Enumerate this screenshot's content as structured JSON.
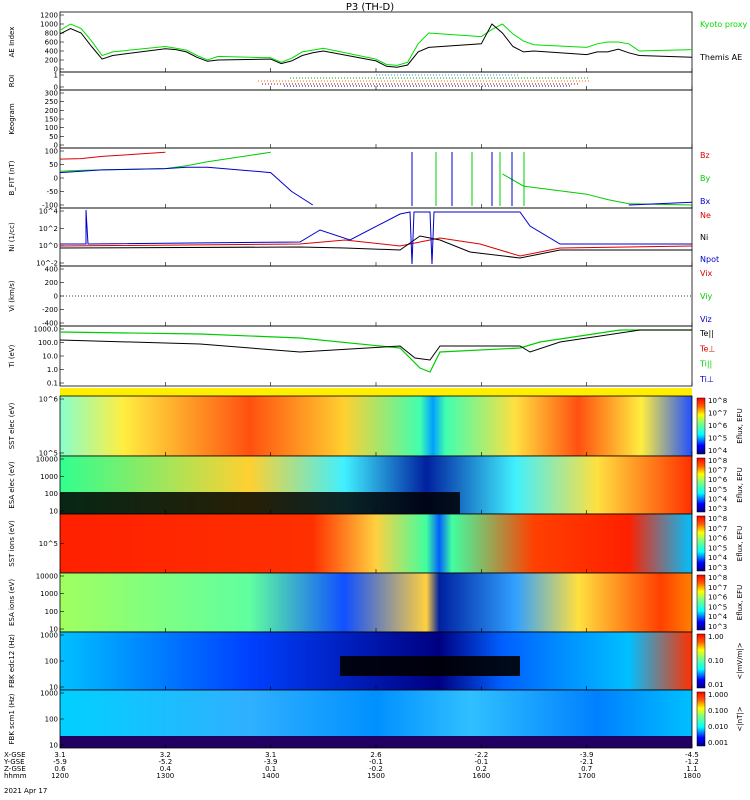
{
  "title": "P3 (TH-D)",
  "date": "2021 Apr 17",
  "footer_rows": [
    {
      "label": "X-GSE",
      "values": [
        "3.1",
        "3.2",
        "3.1",
        "2.6",
        "-2.2",
        "-3.9",
        "-4.5"
      ]
    },
    {
      "label": "Y-GSE",
      "values": [
        "-5.9",
        "-5.2",
        "-3.9",
        "-0.1",
        "-0.1",
        "-2.1",
        "-1.2"
      ]
    },
    {
      "label": "Z-GSE",
      "values": [
        "0.6",
        "0.4",
        "0.1",
        "-0.2",
        "0.2",
        "0.7",
        "1.1"
      ]
    },
    {
      "label": "hhmm",
      "values": [
        "1200",
        "1300",
        "1400",
        "1500",
        "1600",
        "1700",
        "1800"
      ]
    }
  ],
  "chart_data": [
    {
      "type": "line",
      "panel": "ae",
      "ylabel": "AE Index",
      "yticks": [
        "1200",
        "1000",
        "800",
        "600",
        "400",
        "200",
        "0"
      ],
      "ylim": [
        0,
        1200
      ],
      "x": [
        1200,
        1210,
        1220,
        1230,
        1240,
        1250,
        1300,
        1310,
        1320,
        1330,
        1340,
        1350,
        1400,
        1410,
        1420,
        1430,
        1440,
        1450,
        1500,
        1510,
        1520,
        1530,
        1540,
        1550,
        1600,
        1610,
        1620,
        1630,
        1640,
        1650,
        1700,
        1710,
        1720,
        1730,
        1740,
        1750,
        1800
      ],
      "series": [
        {
          "name": "Kyoto proxy AE",
          "color": "#00dd00",
          "values": [
            860,
            1000,
            900,
            620,
            300,
            380,
            500,
            460,
            420,
            300,
            200,
            280,
            250,
            150,
            240,
            380,
            420,
            460,
            220,
            100,
            80,
            150,
            560,
            800,
            720,
            880,
            1000,
            780,
            620,
            540,
            480,
            560,
            600,
            600,
            560,
            400,
            430
          ]
        },
        {
          "name": "Themis AE",
          "color": "#000000",
          "values": [
            780,
            900,
            800,
            500,
            220,
            300,
            450,
            430,
            380,
            260,
            170,
            200,
            220,
            120,
            180,
            300,
            360,
            400,
            180,
            60,
            40,
            90,
            380,
            480,
            560,
            1000,
            800,
            500,
            380,
            400,
            320,
            380,
            380,
            440,
            360,
            300,
            260
          ]
        }
      ]
    },
    {
      "type": "scatter",
      "panel": "roi",
      "ylabel": "ROI",
      "yticks": [
        "1",
        "0"
      ]
    },
    {
      "type": "heatmap",
      "panel": "keogram",
      "ylabel": "Keogram",
      "yticks": [
        "300",
        "250",
        "200",
        "150",
        "100",
        "50",
        "0"
      ],
      "ylim": [
        0,
        300
      ]
    },
    {
      "type": "line",
      "panel": "bfit",
      "ylabel": "B_FIT (nT)",
      "yticks": [
        "100",
        "50",
        "0",
        "-50",
        "-100"
      ],
      "ylim": [
        -100,
        100
      ],
      "x": [
        1200,
        1220,
        1240,
        1300,
        1320,
        1340,
        1400,
        1420,
        1440,
        1500,
        1520,
        1540,
        1600,
        1620,
        1640,
        1700,
        1720,
        1740,
        1800
      ],
      "series": [
        {
          "name": "Bz",
          "color": "#dd0000",
          "values": [
            70,
            72,
            80,
            95,
            null,
            null,
            null,
            null,
            null,
            null,
            null,
            null,
            null,
            null,
            null,
            null,
            null,
            null,
            null
          ]
        },
        {
          "name": "By",
          "color": "#00cc00",
          "values": [
            25,
            28,
            30,
            35,
            45,
            60,
            95,
            null,
            null,
            null,
            null,
            null,
            null,
            15,
            -30,
            -60,
            -80,
            -95,
            -100
          ]
        },
        {
          "name": "Bx",
          "color": "#0000cc",
          "values": [
            20,
            25,
            30,
            35,
            40,
            40,
            20,
            -50,
            -100,
            null,
            null,
            null,
            null,
            null,
            null,
            null,
            null,
            -100,
            -90
          ]
        }
      ],
      "legend": [
        "Bz",
        "By",
        "Bx"
      ]
    },
    {
      "type": "line",
      "panel": "ni",
      "ylabel": "Ni (1/cc)",
      "yticks": [
        "10^4",
        "10^2",
        "10^0",
        "10^-2"
      ],
      "legend": [
        "Ne",
        "Ni",
        "Npot"
      ]
    },
    {
      "type": "line",
      "panel": "vi",
      "ylabel": "Vi (km/s)",
      "yticks": [
        "400",
        "200",
        "0",
        "-200",
        "-400"
      ],
      "ylim": [
        -500,
        500
      ],
      "legend": [
        "Vix",
        "Viy",
        "Viz"
      ]
    },
    {
      "type": "line",
      "panel": "ti",
      "ylabel": "Ti (eV)",
      "yticks": [
        "1000.0",
        "100.0",
        "10.0",
        "1.0",
        "0.1"
      ],
      "legend": [
        "Te||",
        "Te⊥",
        "Ti||",
        "Ti⊥"
      ]
    },
    {
      "type": "heatmap",
      "panel": "sst_e",
      "ylabel": "SST elec (eV)",
      "yticks": [
        "10^6",
        "10^5"
      ],
      "colorbar": [
        "10^8",
        "10^7",
        "10^6",
        "10^5",
        "10^4"
      ],
      "colorbar_label": "Eflux, EFU"
    },
    {
      "type": "heatmap",
      "panel": "esa_e",
      "ylabel": "ESA elec (eV)",
      "yticks": [
        "10000",
        "1000",
        "100",
        "10"
      ],
      "colorbar": [
        "10^8",
        "10^7",
        "10^6",
        "10^5",
        "10^4",
        "10^3"
      ],
      "colorbar_label": "Eflux, EFU"
    },
    {
      "type": "heatmap",
      "panel": "sst_i",
      "ylabel": "SST ions (eV)",
      "yticks": [
        "10^5"
      ],
      "colorbar": [
        "10^8",
        "10^7",
        "10^6",
        "10^5",
        "10^4",
        "10^3"
      ],
      "colorbar_label": "Eflux, EFU"
    },
    {
      "type": "heatmap",
      "panel": "esa_i",
      "ylabel": "ESA ions (eV)",
      "yticks": [
        "10000",
        "1000",
        "100",
        "10"
      ],
      "colorbar": [
        "10^8",
        "10^7",
        "10^6",
        "10^5",
        "10^4",
        "10^3"
      ],
      "colorbar_label": "Eflux, EFU"
    },
    {
      "type": "heatmap",
      "panel": "fbk_e",
      "ylabel": "FBK edc12 (Hz)",
      "yticks": [
        "1000",
        "100",
        "10"
      ],
      "colorbar": [
        "1.00",
        "0.10",
        "0.01"
      ],
      "colorbar_label": "<|mV/m|>"
    },
    {
      "type": "heatmap",
      "panel": "fbk_b",
      "ylabel": "FBK scm1 (Hz)",
      "yticks": [
        "1000",
        "100",
        "10"
      ],
      "colorbar": [
        "1.000",
        "0.100",
        "0.010",
        "0.001"
      ],
      "colorbar_label": "<|nT|>"
    }
  ],
  "legends": {
    "ae": [
      "Kyoto proxy AE",
      "Themis AE"
    ]
  },
  "colors": {
    "red": "#dd0000",
    "green": "#00cc00",
    "blue": "#0000cc",
    "black": "#000000"
  }
}
